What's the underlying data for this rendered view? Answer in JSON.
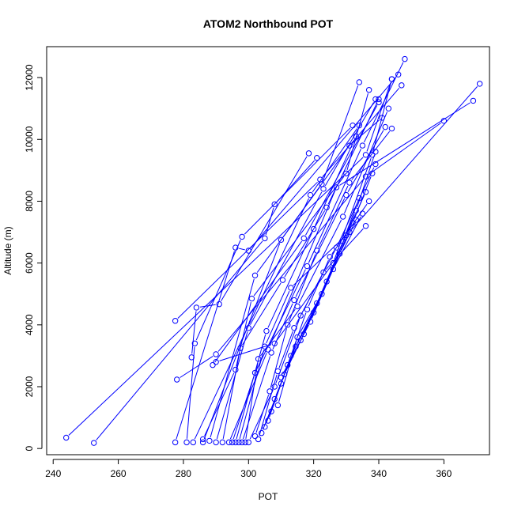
{
  "chart_data": {
    "type": "line",
    "title": "ATOM2 Northbound POT",
    "xlabel": "POT",
    "ylabel": "Altitude (m)",
    "xlim": [
      238,
      374
    ],
    "ylim": [
      -200,
      13000
    ],
    "xticks": [
      240,
      260,
      280,
      300,
      320,
      340,
      360
    ],
    "yticks": [
      0,
      2000,
      4000,
      6000,
      8000,
      10000,
      12000
    ],
    "grid": false,
    "legend": "none",
    "line_color": "#0000ff",
    "marker": "open-circle",
    "series": [
      {
        "points": [
          [
            244,
            350
          ],
          [
            336,
            9500
          ],
          [
            344,
            11950
          ]
        ]
      },
      {
        "points": [
          [
            252.5,
            180
          ],
          [
            305,
            6800
          ],
          [
            308,
            7900
          ],
          [
            321,
            9400
          ]
        ]
      },
      {
        "points": [
          [
            277.5,
            200
          ],
          [
            296,
            6500
          ],
          [
            300,
            6400
          ],
          [
            346,
            12100
          ]
        ]
      },
      {
        "points": [
          [
            278,
            2230
          ],
          [
            290,
            3050
          ],
          [
            336,
            8800
          ],
          [
            360,
            10600
          ]
        ]
      },
      {
        "points": [
          [
            277.5,
            4130
          ],
          [
            322,
            8700
          ],
          [
            347,
            11750
          ]
        ]
      },
      {
        "points": [
          [
            281,
            200
          ],
          [
            283.5,
            3400
          ],
          [
            298,
            6850
          ],
          [
            332,
            10450
          ]
        ]
      },
      {
        "points": [
          [
            282.5,
            2950
          ],
          [
            284,
            4560
          ],
          [
            291,
            4670
          ],
          [
            318.5,
            9550
          ]
        ]
      },
      {
        "points": [
          [
            283,
            200
          ],
          [
            319,
            8200
          ],
          [
            334,
            10450
          ]
        ]
      },
      {
        "points": [
          [
            286,
            200
          ],
          [
            310,
            6750
          ],
          [
            331,
            9800
          ],
          [
            341,
            10700
          ]
        ]
      },
      {
        "points": [
          [
            286,
            300
          ],
          [
            296,
            2550
          ],
          [
            301,
            4850
          ],
          [
            330,
            8900
          ],
          [
            337,
            11600
          ]
        ]
      },
      {
        "points": [
          [
            288,
            250
          ],
          [
            302,
            5600
          ],
          [
            322.5,
            8550
          ],
          [
            334,
            11850
          ]
        ]
      },
      {
        "points": [
          [
            290,
            200
          ],
          [
            300,
            3900
          ],
          [
            323,
            8400
          ],
          [
            339,
            11300
          ]
        ]
      },
      {
        "points": [
          [
            292,
            200
          ],
          [
            297.5,
            3250
          ],
          [
            310.5,
            5450
          ],
          [
            324,
            7800
          ],
          [
            340,
            11300
          ]
        ]
      },
      {
        "points": [
          [
            289,
            2700
          ],
          [
            317,
            6800
          ],
          [
            340,
            11200
          ]
        ]
      },
      {
        "points": [
          [
            290,
            2800
          ],
          [
            308,
            3400
          ],
          [
            326,
            6000
          ],
          [
            338,
            9500
          ],
          [
            344,
            11950
          ]
        ]
      },
      {
        "points": [
          [
            294,
            200
          ],
          [
            306,
            3200
          ],
          [
            327,
            8450
          ],
          [
            369,
            11250
          ]
        ]
      },
      {
        "points": [
          [
            295,
            200
          ],
          [
            302,
            2450
          ],
          [
            318,
            5900
          ],
          [
            335,
            9800
          ],
          [
            348,
            12600
          ]
        ]
      },
      {
        "points": [
          [
            296,
            200
          ],
          [
            305.5,
            3800
          ],
          [
            320,
            7100
          ],
          [
            333,
            10100
          ]
        ]
      },
      {
        "points": [
          [
            297,
            200
          ],
          [
            305,
            3300
          ],
          [
            313,
            5200
          ],
          [
            331,
            7000
          ],
          [
            371,
            11800
          ]
        ]
      },
      {
        "points": [
          [
            298,
            200
          ],
          [
            307,
            3100
          ],
          [
            314,
            4800
          ],
          [
            330,
            8200
          ],
          [
            342,
            10400
          ]
        ]
      },
      {
        "points": [
          [
            299,
            200
          ],
          [
            303,
            2900
          ],
          [
            315,
            4600
          ],
          [
            329,
            7500
          ],
          [
            343,
            11000
          ]
        ]
      },
      {
        "points": [
          [
            300,
            200
          ],
          [
            308,
            2000
          ],
          [
            316,
            4300
          ],
          [
            327,
            6500
          ],
          [
            339,
            9200
          ]
        ]
      },
      {
        "points": [
          [
            302,
            400
          ],
          [
            306.5,
            1850
          ],
          [
            312,
            4000
          ],
          [
            321,
            6400
          ],
          [
            331,
            8600
          ],
          [
            344,
            10350
          ]
        ]
      },
      {
        "points": [
          [
            303,
            300
          ],
          [
            309,
            2500
          ],
          [
            314,
            3900
          ],
          [
            323,
            5700
          ],
          [
            336,
            7200
          ]
        ]
      },
      {
        "points": [
          [
            304,
            500
          ],
          [
            310,
            2100
          ],
          [
            318,
            4500
          ],
          [
            325,
            6200
          ],
          [
            337,
            8000
          ]
        ]
      },
      {
        "points": [
          [
            305,
            700
          ],
          [
            311,
            2400
          ],
          [
            317,
            3700
          ],
          [
            326,
            5800
          ],
          [
            335,
            7600
          ]
        ]
      },
      {
        "points": [
          [
            306,
            900
          ],
          [
            312,
            2700
          ],
          [
            319,
            4100
          ],
          [
            328,
            6300
          ],
          [
            333,
            7400
          ]
        ]
      },
      {
        "points": [
          [
            307,
            1200
          ],
          [
            313,
            3000
          ],
          [
            320,
            4400
          ],
          [
            329,
            6700
          ],
          [
            334,
            8100
          ]
        ]
      },
      {
        "points": [
          [
            308,
            1600
          ],
          [
            314.5,
            3300
          ],
          [
            321,
            4700
          ],
          [
            330,
            6900
          ],
          [
            336,
            8300
          ]
        ]
      },
      {
        "points": [
          [
            309,
            1400
          ],
          [
            315,
            3600
          ],
          [
            322.5,
            5000
          ],
          [
            332,
            7300
          ],
          [
            338,
            8900
          ]
        ]
      },
      {
        "points": [
          [
            310,
            2300
          ],
          [
            316,
            3500
          ],
          [
            324,
            5400
          ],
          [
            333,
            7700
          ],
          [
            339,
            9600
          ]
        ]
      }
    ]
  }
}
